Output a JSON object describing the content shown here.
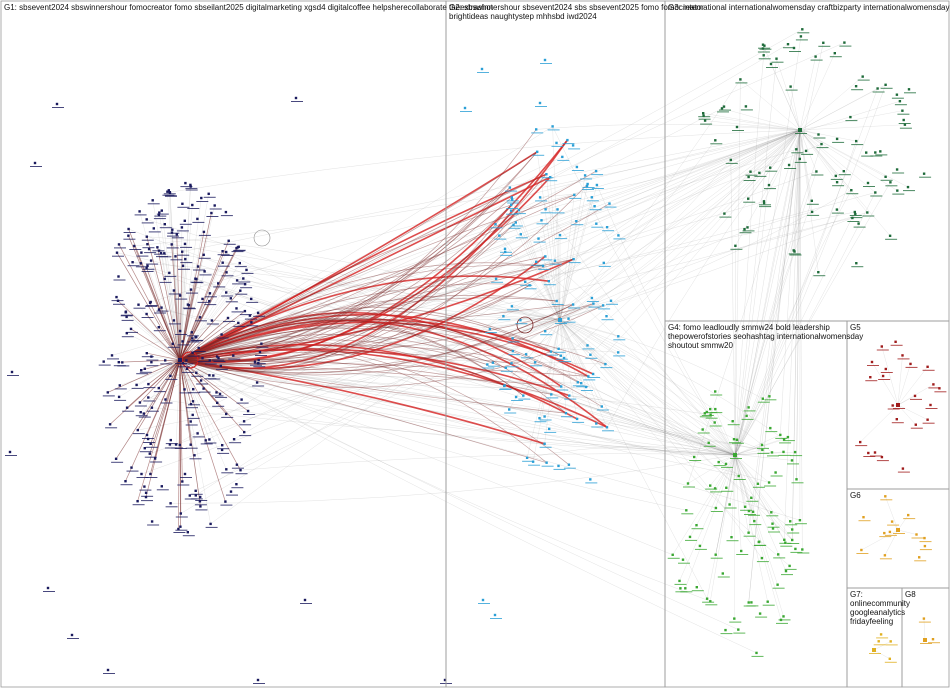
{
  "groups": [
    {
      "id": "G1",
      "label": "G1: sbsevent2024 sbswinnershour fomocreator fomo sbseilant2025 digitalmarketing xgsd4 digitalcoffee helpsherecollaborate theextrashot",
      "label_lines": [
        "G1: sbsevent2024 sbswinnershour fomocreator fomo sbseilant2025 digitalmarketing xgsd4 digitalcoffee helpsherecollaborate theextrashot"
      ],
      "color": "#1a1a5e"
    },
    {
      "id": "G2",
      "label": "G2: sbswinnershour sbsevent2024 sbs sbsevent2025 fomo fomocreator brightideas naughtystep mhhsbd iwd2024",
      "label_lines": [
        "G2: sbswinnershour sbsevent2024 sbs sbsevent2025 fomo fomocreator",
        "brightideas naughtystep mhhsbd iwd2024"
      ],
      "color": "#2a9fd6"
    },
    {
      "id": "G3",
      "label": "G3: international internationalwomensday craftbizparty internationalwomensday",
      "label_lines": [
        "G3: international internationalwomensday craftbizparty internationalwomensday"
      ],
      "color": "#1e6b3a"
    },
    {
      "id": "G4",
      "label": "G4: fomo leadloudly smmw24 bold leadership thepowerofstories seohashtag internationalwomensday shoutout smmw20",
      "label_lines": [
        "G4: fomo leadloudly smmw24 bold leadership",
        "thepowerofstories seohashtag internationalwomensday",
        "shoutout smmw20"
      ],
      "color": "#3aa832"
    },
    {
      "id": "G5",
      "label": "G5",
      "label_lines": [
        "G5"
      ],
      "color": "#a01c1c"
    },
    {
      "id": "G6",
      "label": "G6",
      "label_lines": [
        "G6"
      ],
      "color": "#e0a020"
    },
    {
      "id": "G7",
      "label": "G7: onlinecommunity googleanalytics fridayfeeling",
      "label_lines": [
        "G7:",
        "onlinecommunity",
        "googleanalytics",
        "fridayfeeling"
      ],
      "color": "#e0b020"
    },
    {
      "id": "G8",
      "label": "G8",
      "label_lines": [
        "G8"
      ],
      "color": "#e0a020"
    }
  ],
  "colors": {
    "border": "#9a9a9a",
    "edge_gray": "#8a8a8a",
    "edge_red": "#d42020",
    "edge_maroon": "#7a2a2a"
  }
}
